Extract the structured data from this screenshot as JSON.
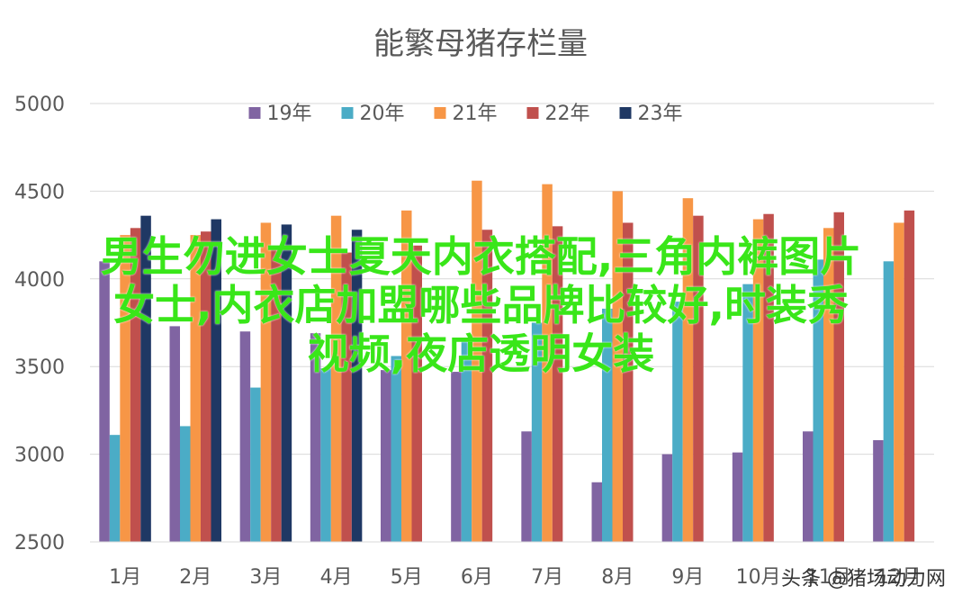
{
  "chart_data": {
    "type": "bar",
    "title": "能繁母猪存栏量",
    "categories": [
      "1月",
      "2月",
      "3月",
      "4月",
      "5月",
      "6月",
      "7月",
      "8月",
      "9月",
      "10月",
      "11月",
      "12月"
    ],
    "ylim": [
      2500,
      5000
    ],
    "yticks": [
      "5000",
      "4500",
      "4000",
      "3500",
      "3000",
      "2500"
    ],
    "grid": true,
    "legend_position": "top",
    "series": [
      {
        "name": "19年",
        "color": "#8064a2",
        "values": [
          4100,
          3730,
          3700,
          3690,
          3480,
          3470,
          3130,
          2840,
          3000,
          3010,
          3130,
          3080
        ]
      },
      {
        "name": "20年",
        "color": "#4bacc6",
        "values": [
          3110,
          3160,
          3380,
          3490,
          3560,
          3650,
          3750,
          3830,
          3870,
          3970,
          4110,
          4100
        ]
      },
      {
        "name": "21年",
        "color": "#f79646",
        "values": [
          4250,
          4250,
          4320,
          4360,
          4390,
          4560,
          4540,
          4500,
          4460,
          4340,
          4290,
          4320
        ]
      },
      {
        "name": "22年",
        "color": "#c0504d",
        "values": [
          4290,
          4270,
          4180,
          4150,
          4190,
          4280,
          4300,
          4320,
          4360,
          4370,
          4380,
          4390
        ]
      },
      {
        "name": "23年",
        "color": "#1f3864",
        "values": [
          4360,
          4340,
          4310,
          4280,
          null,
          null,
          null,
          null,
          null,
          null,
          null,
          null
        ]
      }
    ]
  },
  "overlay": {
    "lines": [
      "男生勿进女士夏天内衣搭配,三角内裤图片",
      "女士,内衣店加盟哪些品牌比较好,时装秀",
      "视频,夜店透明女装"
    ]
  },
  "watermark": "头条 @猪场动力网"
}
